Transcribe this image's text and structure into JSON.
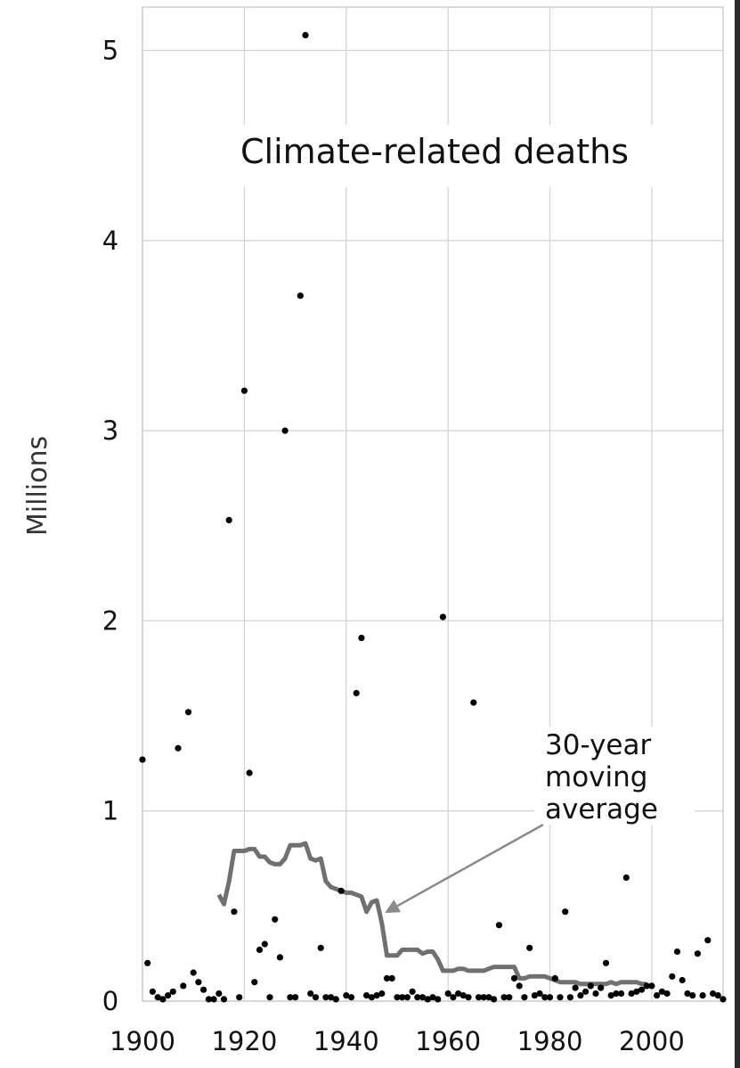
{
  "chart_data": {
    "type": "scatter",
    "title": "Climate-related deaths",
    "ylabel": "Millions",
    "xlabel": "",
    "xlim": [
      1900,
      2014
    ],
    "ylim": [
      0,
      5
    ],
    "x_ticks": [
      "1900",
      "1920",
      "1940",
      "1960",
      "1980",
      "2000"
    ],
    "y_ticks": [
      "0",
      "1",
      "2",
      "3",
      "4",
      "5"
    ],
    "grid": true,
    "colors": {
      "points": "#000000",
      "moving_average": "#707070",
      "arrow": "#8a8a8a"
    },
    "annotation": {
      "lines": [
        "30-year",
        "moving",
        "average"
      ],
      "points_to_x": 1949,
      "points_to_y": 0.45
    },
    "series": [
      {
        "type": "scatter",
        "points": [
          [
            1900,
            1.27
          ],
          [
            1901,
            0.2
          ],
          [
            1902,
            0.05
          ],
          [
            1903,
            0.02
          ],
          [
            1904,
            0.01
          ],
          [
            1905,
            0.03
          ],
          [
            1906,
            0.05
          ],
          [
            1907,
            1.33
          ],
          [
            1908,
            0.08
          ],
          [
            1909,
            1.52
          ],
          [
            1910,
            0.15
          ],
          [
            1911,
            0.1
          ],
          [
            1912,
            0.06
          ],
          [
            1913,
            0.01
          ],
          [
            1914,
            0.01
          ],
          [
            1915,
            0.04
          ],
          [
            1916,
            0.01
          ],
          [
            1917,
            2.53
          ],
          [
            1918,
            0.47
          ],
          [
            1919,
            0.02
          ],
          [
            1920,
            3.21
          ],
          [
            1921,
            1.2
          ],
          [
            1922,
            0.1
          ],
          [
            1923,
            0.27
          ],
          [
            1924,
            0.3
          ],
          [
            1925,
            0.02
          ],
          [
            1926,
            0.43
          ],
          [
            1927,
            0.23
          ],
          [
            1928,
            3.0
          ],
          [
            1929,
            0.02
          ],
          [
            1930,
            0.02
          ],
          [
            1931,
            3.71
          ],
          [
            1932,
            5.08
          ],
          [
            1933,
            0.04
          ],
          [
            1934,
            0.02
          ],
          [
            1935,
            0.28
          ],
          [
            1936,
            0.02
          ],
          [
            1937,
            0.02
          ],
          [
            1938,
            0.01
          ],
          [
            1939,
            0.58
          ],
          [
            1940,
            0.03
          ],
          [
            1941,
            0.02
          ],
          [
            1942,
            1.62
          ],
          [
            1943,
            1.91
          ],
          [
            1944,
            0.03
          ],
          [
            1945,
            0.02
          ],
          [
            1946,
            0.03
          ],
          [
            1947,
            0.04
          ],
          [
            1948,
            0.12
          ],
          [
            1949,
            0.12
          ],
          [
            1950,
            0.02
          ],
          [
            1951,
            0.02
          ],
          [
            1952,
            0.02
          ],
          [
            1953,
            0.05
          ],
          [
            1954,
            0.02
          ],
          [
            1955,
            0.02
          ],
          [
            1956,
            0.01
          ],
          [
            1957,
            0.02
          ],
          [
            1958,
            0.01
          ],
          [
            1959,
            2.02
          ],
          [
            1960,
            0.04
          ],
          [
            1961,
            0.02
          ],
          [
            1962,
            0.04
          ],
          [
            1963,
            0.03
          ],
          [
            1964,
            0.02
          ],
          [
            1965,
            1.57
          ],
          [
            1966,
            0.02
          ],
          [
            1967,
            0.02
          ],
          [
            1968,
            0.02
          ],
          [
            1969,
            0.01
          ],
          [
            1970,
            0.4
          ],
          [
            1971,
            0.02
          ],
          [
            1972,
            0.02
          ],
          [
            1973,
            0.12
          ],
          [
            1974,
            0.08
          ],
          [
            1975,
            0.02
          ],
          [
            1976,
            0.28
          ],
          [
            1977,
            0.03
          ],
          [
            1978,
            0.04
          ],
          [
            1979,
            0.02
          ],
          [
            1980,
            0.02
          ],
          [
            1981,
            0.12
          ],
          [
            1982,
            0.02
          ],
          [
            1983,
            0.47
          ],
          [
            1984,
            0.02
          ],
          [
            1985,
            0.07
          ],
          [
            1986,
            0.03
          ],
          [
            1987,
            0.05
          ],
          [
            1988,
            0.08
          ],
          [
            1989,
            0.04
          ],
          [
            1990,
            0.07
          ],
          [
            1991,
            0.2
          ],
          [
            1992,
            0.03
          ],
          [
            1993,
            0.04
          ],
          [
            1994,
            0.04
          ],
          [
            1995,
            0.65
          ],
          [
            1996,
            0.04
          ],
          [
            1997,
            0.05
          ],
          [
            1998,
            0.06
          ],
          [
            1999,
            0.08
          ],
          [
            2000,
            0.08
          ],
          [
            2001,
            0.03
          ],
          [
            2002,
            0.05
          ],
          [
            2003,
            0.04
          ],
          [
            2004,
            0.13
          ],
          [
            2005,
            0.26
          ],
          [
            2006,
            0.11
          ],
          [
            2007,
            0.04
          ],
          [
            2008,
            0.03
          ],
          [
            2009,
            0.25
          ],
          [
            2010,
            0.03
          ],
          [
            2011,
            0.32
          ],
          [
            2012,
            0.04
          ],
          [
            2013,
            0.03
          ],
          [
            2014,
            0.01
          ]
        ]
      },
      {
        "type": "line",
        "points": [
          [
            1915,
            0.56
          ],
          [
            1916,
            0.51
          ],
          [
            1917,
            0.63
          ],
          [
            1918,
            0.79
          ],
          [
            1919,
            0.79
          ],
          [
            1920,
            0.79
          ],
          [
            1921,
            0.8
          ],
          [
            1922,
            0.8
          ],
          [
            1923,
            0.76
          ],
          [
            1924,
            0.76
          ],
          [
            1925,
            0.73
          ],
          [
            1926,
            0.72
          ],
          [
            1927,
            0.72
          ],
          [
            1928,
            0.75
          ],
          [
            1929,
            0.82
          ],
          [
            1930,
            0.82
          ],
          [
            1931,
            0.82
          ],
          [
            1932,
            0.83
          ],
          [
            1933,
            0.75
          ],
          [
            1934,
            0.74
          ],
          [
            1935,
            0.75
          ],
          [
            1936,
            0.63
          ],
          [
            1937,
            0.6
          ],
          [
            1938,
            0.59
          ],
          [
            1939,
            0.58
          ],
          [
            1940,
            0.57
          ],
          [
            1941,
            0.57
          ],
          [
            1942,
            0.56
          ],
          [
            1943,
            0.55
          ],
          [
            1944,
            0.47
          ],
          [
            1945,
            0.52
          ],
          [
            1946,
            0.53
          ],
          [
            1947,
            0.41
          ],
          [
            1948,
            0.24
          ],
          [
            1949,
            0.24
          ],
          [
            1950,
            0.24
          ],
          [
            1951,
            0.27
          ],
          [
            1952,
            0.27
          ],
          [
            1953,
            0.27
          ],
          [
            1954,
            0.27
          ],
          [
            1955,
            0.25
          ],
          [
            1956,
            0.26
          ],
          [
            1957,
            0.26
          ],
          [
            1958,
            0.22
          ],
          [
            1959,
            0.16
          ],
          [
            1960,
            0.16
          ],
          [
            1961,
            0.16
          ],
          [
            1962,
            0.17
          ],
          [
            1963,
            0.17
          ],
          [
            1964,
            0.16
          ],
          [
            1965,
            0.16
          ],
          [
            1966,
            0.16
          ],
          [
            1967,
            0.16
          ],
          [
            1968,
            0.17
          ],
          [
            1969,
            0.18
          ],
          [
            1970,
            0.18
          ],
          [
            1971,
            0.18
          ],
          [
            1972,
            0.18
          ],
          [
            1973,
            0.18
          ],
          [
            1974,
            0.12
          ],
          [
            1975,
            0.12
          ],
          [
            1976,
            0.13
          ],
          [
            1977,
            0.13
          ],
          [
            1978,
            0.13
          ],
          [
            1979,
            0.13
          ],
          [
            1980,
            0.12
          ],
          [
            1981,
            0.11
          ],
          [
            1982,
            0.1
          ],
          [
            1983,
            0.1
          ],
          [
            1984,
            0.1
          ],
          [
            1985,
            0.1
          ],
          [
            1986,
            0.09
          ],
          [
            1987,
            0.09
          ],
          [
            1988,
            0.09
          ],
          [
            1989,
            0.09
          ],
          [
            1990,
            0.09
          ],
          [
            1991,
            0.09
          ],
          [
            1992,
            0.1
          ],
          [
            1993,
            0.09
          ],
          [
            1994,
            0.1
          ],
          [
            1995,
            0.1
          ],
          [
            1996,
            0.1
          ],
          [
            1997,
            0.1
          ],
          [
            1998,
            0.09
          ],
          [
            1999,
            0.09
          ]
        ]
      }
    ]
  }
}
